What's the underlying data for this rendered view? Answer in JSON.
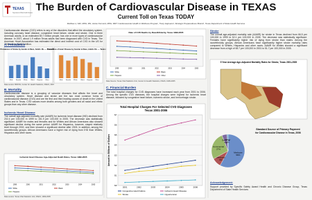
{
  "header": {
    "logo": "TEXAS",
    "logo_sub": "Department of State Health Services",
    "title": "The Burden of Cardiovascular Disease in TEXAS",
    "subtitle": "Current Toll on Texas TODAY",
    "authors": "Mathias Li, MD, MPH; RN; Jamie Osmond, MPH; RRT; Cardiovascular Health & Wellness Program, Tracy Hapuaroz; Strategic Preparedness Branch, Texas Department of State Health Services"
  },
  "text": {
    "intro": "Cardiovascular disease (CVD) refers to any of the disorders that affect the circulatory system, including coronary heart disease, congestive heart failure, stroke and stroke. One in three American adults, or an estimated 80.7 million people, has one or more types of cardiovascular disease. In 2007, about 1.9 million Texas adults had been diagnosed with CVD in Texas. The American Heart Association has estimated the direct and indirect cost of CVD in the US for 2008 will be $448.5 billion.",
    "prevalence_heading": "A. Prevalence",
    "prevalence_note": "Data source: BRFSS, Center for Health Statistics, DSHS, 2007",
    "mortality_heading": "B. Mortality",
    "mortality_text": "Cardiovascular disease is a grouping of vascular diseases that affects the heart and circulatory system. Heart disease and stroke are the two most common forms of cardiovascular disease (CVD) and are the first and third leading causes of death in the United States and in Texas. CVD causes more deaths among both genders and all racial and ethnic groups than any other disease.",
    "ihd_heading": "Ischemic Heart Disease",
    "ihd_text": "The overall age-adjusted mortality rate (AAMR) for ischemic heart disease (IHD) declined from 202.4 per 100,000 in 1999 to 151.9 per 100,000 in 2005. The decrease was statistically significant. AAMR for males and females and for Whites and African Americans also showed significant decline during the same period. AAMR for Hispanics, however, stayed relatively level through 2002, and then showed a significant decline after 2003. In addition, among the race/ethnicity groups, African Americans have a higher risk of dying from IHD than Whites, Hispanics and other races.",
    "ihd_note": "Data source: Texas Vital Statistics Unit, DSHS, 1999-2005",
    "cvd_note": "Data Source: Texas Vital Statistics Unit, Center for Health Statistics, DSHS, 1999-2005",
    "stroke_heading": "Stroke",
    "stroke_text": "The overall age-adjusted mortality rate (AAMR) for stroke in Texas declined from 66.5 per 100,000 in 1999 to 52.1 per 100,000 in 2005. The decrease was statistically significant. Females have significantly higher risk of dying from stroke than males. Among the race/ethnicity groups, African Americans have significantly higher stroke mortality rates compared to Whites, Hispanics and other races. AAMR for Whites showed a significant decrease from a high of 65.7 per 100,000 in 2001 to 51.7 per 100,000 in 2005.",
    "stroke_map_title": "5 Year Average Age-Adjusted Mortality Rates for Stroke, Texas 2001-2005",
    "financial_heading": "C. Financial Burden",
    "financial_text": "The total hospital charges for CVD diagnoses have increased each year from 2001 to 2006. Among the specific CVD diseases, the hospital charges were highest for ischemic heart disease, followed by congestive heart failure, ischemic stroke, and hemorrhagic stroke.",
    "ack_heading": "Acknowledgement:",
    "ack_text": "Support provided by Specific Safety Award Health and Chronic Disease Group, Texas Department of State Health Services"
  },
  "charts": {
    "prevalence_stroke": {
      "type": "bar",
      "title": "Prevalence of Stroke by Gender & Race, Adults 18+ — Texas 2007",
      "categories": [
        "Male",
        "Female",
        "White",
        "Black",
        "Hispanic",
        "Other"
      ],
      "values": [
        2.4,
        2.6,
        2.5,
        4.1,
        2.3,
        1.9
      ],
      "ylim": [
        0,
        5
      ],
      "color": "#4a7fc1"
    },
    "prevalence_heart": {
      "type": "bar",
      "title": "Prevalence of Heart Disease by Gender & Race, Adults 18+ — Texas 2007",
      "categories": [
        "Male",
        "Female",
        "White",
        "Black",
        "Hispanic",
        "Other"
      ],
      "values": [
        7.2,
        5.5,
        6.8,
        6.0,
        4.9,
        3.5
      ],
      "ylim": [
        0,
        8
      ],
      "color": "#e08a3c"
    },
    "cvd_deaths": {
      "type": "line",
      "title": "Rate of CVD Deaths by Race/Ethnicity, Texas 1999-2005",
      "categories": [
        "1999",
        "2000",
        "2001",
        "2002",
        "2003",
        "2004",
        "2005"
      ],
      "series": [
        {
          "name": "White",
          "color": "#3b6fb6",
          "values": [
            330,
            320,
            305,
            295,
            280,
            268,
            255
          ]
        },
        {
          "name": "Black",
          "color": "#c0392b",
          "values": [
            420,
            410,
            395,
            380,
            365,
            350,
            335
          ]
        },
        {
          "name": "Hispanic",
          "color": "#7aa33b",
          "values": [
            260,
            250,
            240,
            232,
            222,
            212,
            205
          ]
        },
        {
          "name": "Other",
          "color": "#7d5ba6",
          "values": [
            150,
            145,
            140,
            135,
            128,
            122,
            118
          ]
        }
      ],
      "ylim": [
        0,
        500
      ]
    },
    "ihd_deaths": {
      "type": "line",
      "title": "Ischemic Heart Disease Age-Adjusted Death Rates, Texas 1999-2005",
      "categories": [
        "1999",
        "2000",
        "2001",
        "2002",
        "2003",
        "2004",
        "2005"
      ],
      "series": [
        {
          "name": "White",
          "color": "#3b6fb6",
          "values": [
            200,
            192,
            180,
            170,
            160,
            150,
            140
          ]
        },
        {
          "name": "Black",
          "color": "#c0392b",
          "values": [
            230,
            222,
            210,
            198,
            186,
            175,
            165
          ]
        },
        {
          "name": "Hispanic",
          "color": "#7aa33b",
          "values": [
            170,
            163,
            154,
            146,
            138,
            130,
            122
          ]
        }
      ],
      "ylim": [
        0,
        300
      ]
    },
    "hospital_charges": {
      "type": "line",
      "title": "Total Hospital Charges For Selected CVD Diagnoses",
      "subtitle": "Texas 2001-2006",
      "y_label": "Amount in Billions of Dollars",
      "categories": [
        "2001",
        "2002",
        "2003",
        "2004",
        "2005",
        "2006"
      ],
      "series": [
        {
          "name": "Congestive Heart Failure",
          "color": "#1f3f8f",
          "values": [
            1.5,
            1.7,
            1.9,
            2.1,
            2.3,
            2.5
          ]
        },
        {
          "name": "Ischemic Heart Disease",
          "color": "#c0448f",
          "values": [
            4.5,
            5.0,
            5.5,
            5.9,
            6.2,
            6.5
          ]
        },
        {
          "name": "Stroke",
          "color": "#e3c21f",
          "values": [
            1.2,
            1.4,
            1.5,
            1.7,
            1.9,
            2.0
          ]
        },
        {
          "name": "Hypertension",
          "color": "#35a9c9",
          "values": [
            0.3,
            0.35,
            0.4,
            0.45,
            0.5,
            0.55
          ]
        }
      ],
      "ylim": [
        0,
        7
      ],
      "yticks": [
        {
          "value": 0,
          "label": "$0"
        },
        {
          "value": 1,
          "label": "$1"
        },
        {
          "value": 2,
          "label": "$2"
        },
        {
          "value": 3,
          "label": "$3"
        },
        {
          "value": 4,
          "label": "$4"
        },
        {
          "value": 5,
          "label": "$5"
        },
        {
          "value": 6,
          "label": "$6"
        },
        {
          "value": 7,
          "label": "$7"
        }
      ],
      "grid": true
    },
    "payment_source": {
      "type": "pie",
      "title": "Standard Source of Primary Payment",
      "subtitle": "for Cardiovascular Disease in Texas, 2006",
      "categories": [
        "Medicare",
        "Medicaid",
        "Commercial",
        "Self Pay",
        "Other"
      ],
      "values": [
        58,
        9,
        27,
        5,
        1
      ],
      "value_labels": [
        "58%",
        "9%",
        "27%",
        "5%",
        "1%"
      ],
      "colors": [
        "#6b8ec9",
        "#b05555",
        "#9ab86a",
        "#7e6aa0",
        "#5bb0c8"
      ]
    }
  }
}
